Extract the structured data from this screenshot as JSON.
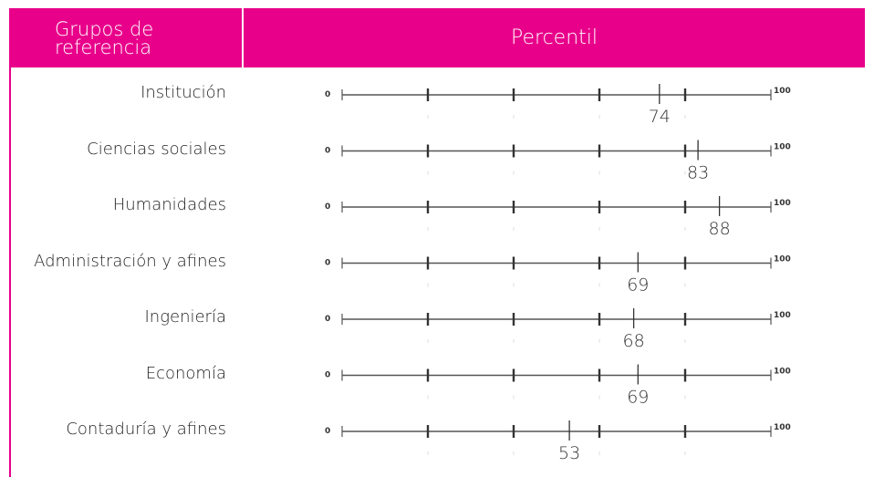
{
  "colors": {
    "accent": "#e8008a",
    "axis": "#555555",
    "marker": "#333333"
  },
  "header": {
    "groups_line1": "Grupos de",
    "groups_line2": "referencia",
    "percentile": "Percentil"
  },
  "chart_data": {
    "type": "table",
    "title": "",
    "scale_min_label": "0",
    "scale_max_label": "100",
    "xlim": [
      0,
      100
    ],
    "major_ticks": [
      20,
      40,
      60,
      80
    ],
    "categories": [
      "Institución",
      "Ciencias sociales",
      "Humanidades",
      "Administración y afines",
      "Ingeniería",
      "Economía",
      "Contaduría y afines"
    ],
    "values": [
      74,
      83,
      88,
      69,
      68,
      69,
      53
    ]
  }
}
